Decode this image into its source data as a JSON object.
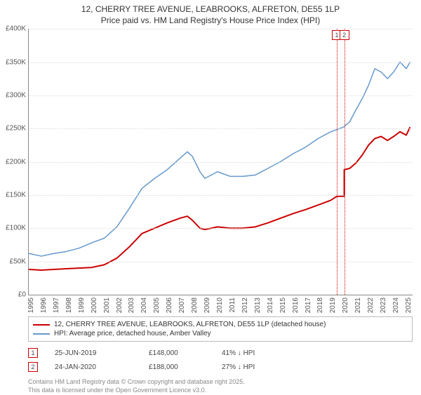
{
  "title": {
    "line1": "12, CHERRY TREE AVENUE, LEABROOKS, ALFRETON, DE55 1LP",
    "line2": "Price paid vs. HM Land Registry's House Price Index (HPI)"
  },
  "chart": {
    "type": "line",
    "background_color": "#ffffff",
    "grid_color": "#dddddd",
    "axis_color": "#888888",
    "label_color": "#555555",
    "label_fontsize": 10,
    "x": {
      "min": 1995,
      "max": 2025.5,
      "ticks": [
        1995,
        1996,
        1997,
        1998,
        1999,
        2000,
        2001,
        2002,
        2003,
        2004,
        2005,
        2006,
        2007,
        2008,
        2009,
        2010,
        2011,
        2012,
        2013,
        2014,
        2015,
        2016,
        2017,
        2018,
        2019,
        2020,
        2021,
        2022,
        2023,
        2024,
        2025
      ]
    },
    "y": {
      "min": 0,
      "max": 400000,
      "ticks": [
        0,
        50000,
        100000,
        150000,
        200000,
        250000,
        300000,
        350000,
        400000
      ],
      "tick_labels": [
        "£0",
        "£50K",
        "£100K",
        "£150K",
        "£200K",
        "£250K",
        "£300K",
        "£350K",
        "£400K"
      ]
    },
    "series": [
      {
        "id": "price_paid",
        "label": "12, CHERRY TREE AVENUE, LEABROOKS, ALFRETON, DE55 1LP (detached house)",
        "color": "#cc0000",
        "line_width": 2,
        "points": [
          [
            1995,
            38000
          ],
          [
            1996,
            37000
          ],
          [
            1997,
            38000
          ],
          [
            1998,
            39000
          ],
          [
            1999,
            40000
          ],
          [
            2000,
            41000
          ],
          [
            2001,
            45000
          ],
          [
            2002,
            55000
          ],
          [
            2003,
            72000
          ],
          [
            2004,
            92000
          ],
          [
            2005,
            100000
          ],
          [
            2006,
            108000
          ],
          [
            2007,
            115000
          ],
          [
            2007.6,
            118000
          ],
          [
            2008,
            112000
          ],
          [
            2008.6,
            100000
          ],
          [
            2009,
            98000
          ],
          [
            2010,
            102000
          ],
          [
            2011,
            100000
          ],
          [
            2012,
            100000
          ],
          [
            2013,
            102000
          ],
          [
            2014,
            108000
          ],
          [
            2015,
            115000
          ],
          [
            2016,
            122000
          ],
          [
            2017,
            128000
          ],
          [
            2018,
            135000
          ],
          [
            2019,
            142000
          ],
          [
            2019.48,
            148000
          ],
          [
            2020.07,
            148000
          ],
          [
            2020.07,
            188000
          ],
          [
            2020.5,
            190000
          ],
          [
            2021,
            198000
          ],
          [
            2021.5,
            210000
          ],
          [
            2022,
            225000
          ],
          [
            2022.5,
            235000
          ],
          [
            2023,
            238000
          ],
          [
            2023.5,
            232000
          ],
          [
            2024,
            238000
          ],
          [
            2024.5,
            245000
          ],
          [
            2025,
            240000
          ],
          [
            2025.3,
            252000
          ]
        ]
      },
      {
        "id": "hpi",
        "label": "HPI: Average price, detached house, Amber Valley",
        "color": "#6699cc",
        "line_width": 1.5,
        "points": [
          [
            1995,
            62000
          ],
          [
            1996,
            58000
          ],
          [
            1997,
            62000
          ],
          [
            1998,
            65000
          ],
          [
            1999,
            70000
          ],
          [
            2000,
            78000
          ],
          [
            2001,
            85000
          ],
          [
            2002,
            102000
          ],
          [
            2003,
            130000
          ],
          [
            2004,
            160000
          ],
          [
            2005,
            175000
          ],
          [
            2006,
            188000
          ],
          [
            2007,
            205000
          ],
          [
            2007.6,
            215000
          ],
          [
            2008,
            208000
          ],
          [
            2008.6,
            185000
          ],
          [
            2009,
            175000
          ],
          [
            2010,
            185000
          ],
          [
            2011,
            178000
          ],
          [
            2012,
            178000
          ],
          [
            2013,
            180000
          ],
          [
            2014,
            190000
          ],
          [
            2015,
            200000
          ],
          [
            2016,
            212000
          ],
          [
            2017,
            222000
          ],
          [
            2018,
            235000
          ],
          [
            2019,
            245000
          ],
          [
            2020,
            252000
          ],
          [
            2020.5,
            260000
          ],
          [
            2021,
            278000
          ],
          [
            2021.5,
            295000
          ],
          [
            2022,
            315000
          ],
          [
            2022.5,
            340000
          ],
          [
            2023,
            335000
          ],
          [
            2023.5,
            325000
          ],
          [
            2024,
            335000
          ],
          [
            2024.5,
            350000
          ],
          [
            2025,
            340000
          ],
          [
            2025.3,
            350000
          ]
        ]
      }
    ],
    "markers": [
      {
        "n": "1",
        "x": 2019.48,
        "color": "#cc0000"
      },
      {
        "n": "2",
        "x": 2020.07,
        "color": "#cc0000"
      }
    ]
  },
  "legend": {
    "border_color": "#bbbbbb",
    "fontsize": 10
  },
  "transactions": [
    {
      "n": "1",
      "date": "25-JUN-2019",
      "price": "£148,000",
      "delta": "41% ↓ HPI",
      "color": "#cc0000"
    },
    {
      "n": "2",
      "date": "24-JAN-2020",
      "price": "£188,000",
      "delta": "27% ↓ HPI",
      "color": "#cc0000"
    }
  ],
  "footer": {
    "line1": "Contains HM Land Registry data © Crown copyright and database right 2025.",
    "line2": "This data is licensed under the Open Government Licence v3.0."
  }
}
